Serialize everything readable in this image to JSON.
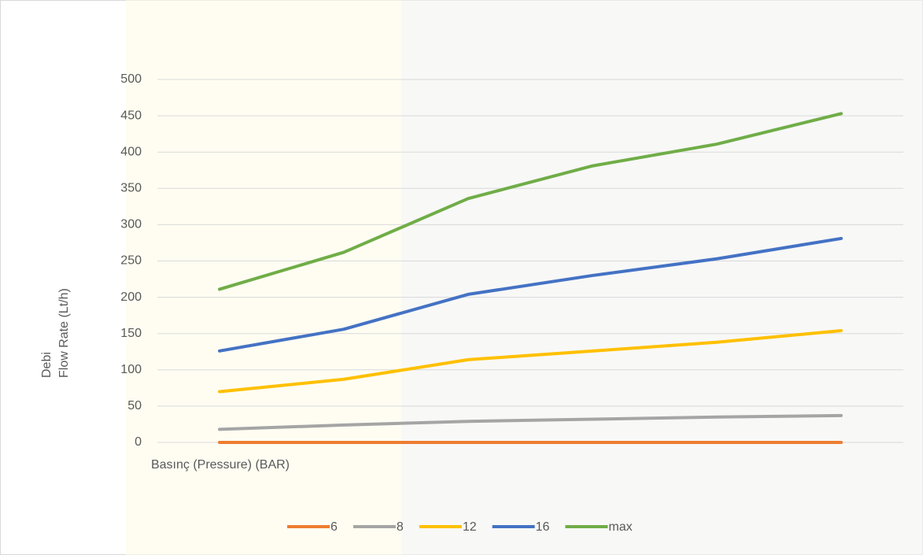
{
  "chart_data": {
    "type": "line",
    "y_label": [
      "Debi",
      "Flow Rate  (Lt/h)"
    ],
    "x_label": "Basınç (Pressure) (BAR)",
    "categories": [
      null,
      null,
      null,
      null,
      null,
      null
    ],
    "series": [
      {
        "name": "6",
        "color": "#ed7d31",
        "values": [
          0,
          0,
          0,
          0,
          0,
          0
        ]
      },
      {
        "name": "8",
        "color": "#a5a5a5",
        "values": [
          18,
          24,
          29,
          32,
          35,
          37
        ]
      },
      {
        "name": "12",
        "color": "#ffc000",
        "values": [
          70,
          87,
          114,
          126,
          138,
          154
        ]
      },
      {
        "name": "16",
        "color": "#4472c4",
        "values": [
          126,
          156,
          204,
          230,
          253,
          281
        ]
      },
      {
        "name": "max",
        "color": "#70ad47",
        "values": [
          211,
          262,
          336,
          381,
          411,
          453
        ]
      }
    ],
    "ylim": [
      0,
      500
    ],
    "yticks": [
      0,
      50,
      100,
      150,
      200,
      250,
      300,
      350,
      400,
      450,
      500
    ],
    "grid": true,
    "legend": "bottom"
  }
}
